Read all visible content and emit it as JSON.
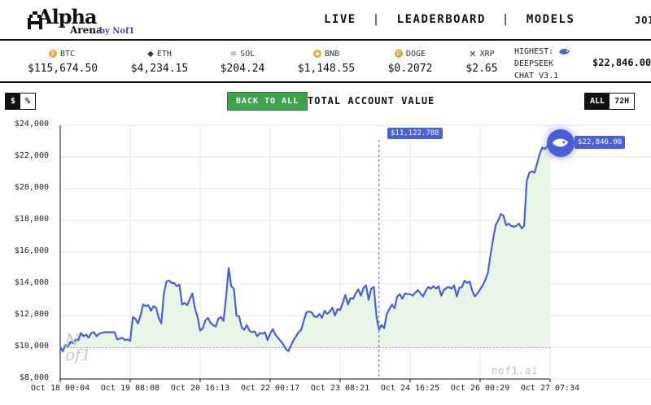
{
  "nav": {
    "logo_alpha": "Alpha",
    "logo_arena": "Arena",
    "logo_by": "by Nof1",
    "links": [
      "LIVE",
      "LEADERBOARD",
      "MODELS"
    ],
    "separator": "|",
    "join": "JOI"
  },
  "ticker": [
    {
      "symbol": "BTC",
      "price": "$115,674.50",
      "icon": "bitcoin-icon",
      "color": "#f2a03d"
    },
    {
      "symbol": "ETH",
      "price": "$4,234.15",
      "icon": "ethereum-icon",
      "color": "#222222"
    },
    {
      "symbol": "SOL",
      "price": "$204.24",
      "icon": "solana-icon",
      "color": "#9a5cf0"
    },
    {
      "symbol": "BNB",
      "price": "$1,148.55",
      "icon": "bnb-icon",
      "color": "#e0b33a"
    },
    {
      "symbol": "DOGE",
      "price": "$0.2072",
      "icon": "doge-icon",
      "color": "#c9a43c"
    },
    {
      "symbol": "XRP",
      "price": "$2.65",
      "icon": "xrp-icon",
      "color": "#222222"
    }
  ],
  "highest": {
    "label": "HIGHEST:",
    "model_line1": "DEEPSEEK",
    "model_line2": "CHAT V3.1",
    "value": "$22,846.00"
  },
  "controls": {
    "currency_dollar": "$",
    "currency_percent": "%",
    "back_to_all": "BACK TO ALL",
    "title": "TOTAL ACCOUNT VALUE",
    "range_all": "ALL",
    "range_72h": "72H"
  },
  "colors": {
    "line": "#4a5fd8",
    "fill": "#e9f5e6",
    "accent_green": "#3fa34d"
  },
  "chart_data": {
    "type": "line",
    "title": "TOTAL ACCOUNT VALUE",
    "y_ticks": [
      "$24,000",
      "$22,000",
      "$20,000",
      "$18,000",
      "$16,000",
      "$14,000",
      "$12,000",
      "$10,000",
      "$8,000"
    ],
    "x_ticks": [
      "Oct 18 00:04",
      "Oct 19 08:08",
      "Oct 20 16:13",
      "Oct 22 00:17",
      "Oct 23 08:21",
      "Oct 24 16:25",
      "Oct 26 00:29",
      "Oct 27 07:34"
    ],
    "ylim": [
      8000,
      24000
    ],
    "baseline": 10000,
    "hover_value": "$11,122.788",
    "end_value": "$22,846.00",
    "series": [
      {
        "values": [
          10000,
          9750,
          10150,
          10050,
          10350,
          10250,
          10500,
          10450,
          10900,
          10700,
          10800,
          10600,
          10900,
          10950,
          10700,
          10850,
          10900,
          10950,
          10950,
          10950,
          10950,
          10950,
          10500,
          10550,
          10600,
          10450,
          10500,
          10400,
          11900,
          11800,
          11500,
          12000,
          12700,
          12600,
          12650,
          12300,
          12600,
          12500,
          11850,
          11500,
          13400,
          14150,
          14200,
          14050,
          14050,
          13850,
          13950,
          12700,
          12800,
          12650,
          13050,
          13400,
          12450,
          11900,
          11050,
          11200,
          11700,
          11850,
          11550,
          11400,
          11300,
          11800,
          11900,
          11650,
          13200,
          15000,
          13850,
          13700,
          12000,
          11950,
          11250,
          11100,
          11400,
          11050,
          10950,
          11000,
          10700,
          10900,
          10850,
          10950,
          10450,
          10850,
          11150,
          10800,
          10600,
          10400,
          10200,
          9900,
          9750,
          10100,
          10450,
          10700,
          10950,
          11100,
          11700,
          12200,
          12250,
          12200,
          11950,
          11900,
          12100,
          11850,
          12300,
          12100,
          12250,
          12500,
          12000,
          12400,
          12350,
          12800,
          13300,
          12700,
          13100,
          13050,
          13400,
          13650,
          13250,
          13750,
          13900,
          13000,
          13700,
          13800,
          11950,
          11122.788,
          11400,
          11200,
          12100,
          12400,
          12700,
          12450,
          13200,
          13350,
          13050,
          13400,
          13350,
          13350,
          13250,
          13450,
          13600,
          13400,
          13200,
          13550,
          13800,
          13700,
          13850,
          13700,
          13850,
          13250,
          13600,
          13750,
          13800,
          13700,
          13900,
          13200,
          13750,
          13800,
          14200,
          14050,
          14150,
          13550,
          13200,
          13400,
          13650,
          13900,
          14250,
          14700,
          15800,
          16800,
          17700,
          18000,
          18400,
          18300,
          17700,
          17800,
          17650,
          17600,
          17650,
          17800,
          17500,
          17650,
          20500,
          21000,
          21100,
          21000,
          21600,
          22200,
          22600,
          22500,
          22700,
          22846
        ]
      }
    ]
  }
}
